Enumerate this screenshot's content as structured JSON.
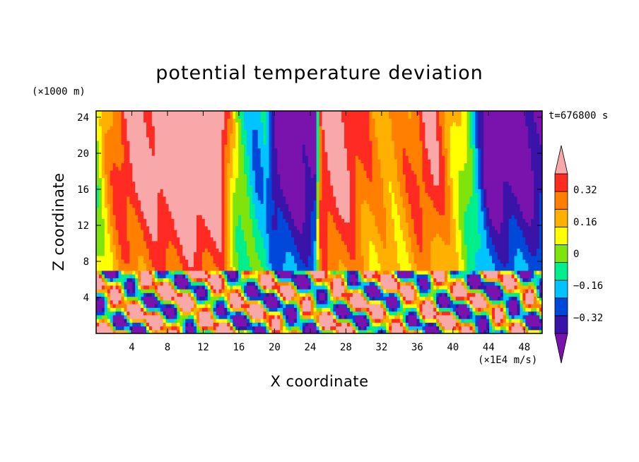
{
  "chart_data": {
    "type": "heatmap",
    "title": "potential temperature deviation",
    "xlabel": "X coordinate",
    "ylabel": "Z coordinate",
    "x_unit": "(×1E4 m/s)",
    "y_unit": "(×1000 m)",
    "time_label": "t=676800 s",
    "xlim": [
      0,
      50
    ],
    "ylim": [
      0,
      24.7
    ],
    "x_ticks": [
      4,
      8,
      12,
      16,
      20,
      24,
      28,
      32,
      36,
      40,
      44,
      48
    ],
    "y_ticks": [
      4,
      8,
      12,
      16,
      20,
      24
    ],
    "colorbar": {
      "levels": [
        -0.48,
        -0.4,
        -0.32,
        -0.24,
        -0.16,
        -0.08,
        0,
        0.08,
        0.16,
        0.24,
        0.32,
        0.4
      ],
      "tick_labels": [
        "0.32",
        "0.16",
        "0",
        "−0.16",
        "−0.32"
      ],
      "tick_values": [
        0.32,
        0.16,
        0,
        -0.16,
        -0.32
      ],
      "colors": [
        "#7a12ad",
        "#3a14a8",
        "#0048d9",
        "#00c4ff",
        "#00ee8c",
        "#7fe40b",
        "#ffff00",
        "#ffb000",
        "#ff8000",
        "#ff2a22",
        "#f8a8a8"
      ],
      "extend": "both"
    },
    "upper_layer_x_profile": {
      "x": [
        0,
        1,
        2,
        3,
        4,
        6,
        8,
        10,
        12,
        14,
        14.8,
        15.5,
        16,
        17,
        18,
        19,
        20,
        21,
        23,
        24.5,
        25.2,
        27,
        29,
        31,
        33,
        35,
        37,
        38,
        39,
        40,
        41,
        42,
        44,
        46,
        48,
        50
      ],
      "value": [
        -0.05,
        0.1,
        0.22,
        0.3,
        0.34,
        0.36,
        0.42,
        0.46,
        0.46,
        0.4,
        0.2,
        0.02,
        -0.08,
        -0.14,
        -0.22,
        -0.2,
        -0.42,
        -0.46,
        -0.46,
        -0.44,
        0.32,
        0.38,
        0.3,
        0.18,
        0.14,
        0.2,
        0.32,
        0.3,
        0.22,
        0.1,
        0.02,
        -0.12,
        -0.46,
        -0.46,
        -0.46,
        -0.4
      ]
    }
  }
}
